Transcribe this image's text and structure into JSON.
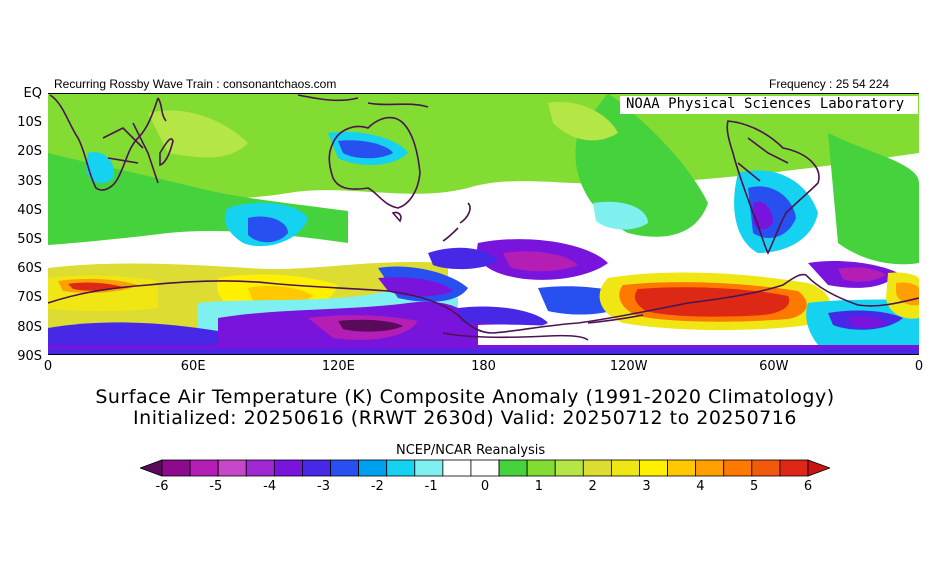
{
  "header": {
    "left_caption": "Recurring Rossby Wave Train : consonantchaos.com",
    "right_caption": "Frequency : 25 54 224",
    "lab_name": "NOAA Physical Sciences Laboratory"
  },
  "map": {
    "lat_labels": [
      "EQ",
      "10S",
      "20S",
      "30S",
      "40S",
      "50S",
      "60S",
      "70S",
      "80S",
      "90S"
    ],
    "lon_labels": [
      "0",
      "60E",
      "120E",
      "180",
      "120W",
      "60W",
      "0"
    ],
    "region": "Southern Hemisphere, equator to 90S, 0 to 360 longitude"
  },
  "title": {
    "line1": "Surface Air Temperature (K) Composite Anomaly (1991-2020 Climatology)",
    "line2": "Initialized: 20250616 (RRWT 2630d) Valid: 20250712 to 20250716"
  },
  "colorbar": {
    "caption": "NCEP/NCAR Reanalysis",
    "tick_labels": [
      "-6",
      "-5",
      "-4",
      "-3",
      "-2",
      "-1",
      "0",
      "1",
      "2",
      "3",
      "4",
      "5",
      "6"
    ],
    "colors": [
      "#5a0a5a",
      "#8c0a8c",
      "#b41eb4",
      "#c846c8",
      "#a028d2",
      "#7814dc",
      "#4628e6",
      "#2850f0",
      "#00a0f0",
      "#14d2f0",
      "#7ef0f0",
      "#ffffff",
      "#ffffff",
      "#46d23c",
      "#82dc32",
      "#b4e646",
      "#dcdc32",
      "#f0e614",
      "#fff000",
      "#ffc800",
      "#ffa000",
      "#ff7800",
      "#f05a0a",
      "#dc2814",
      "#c81414"
    ]
  }
}
